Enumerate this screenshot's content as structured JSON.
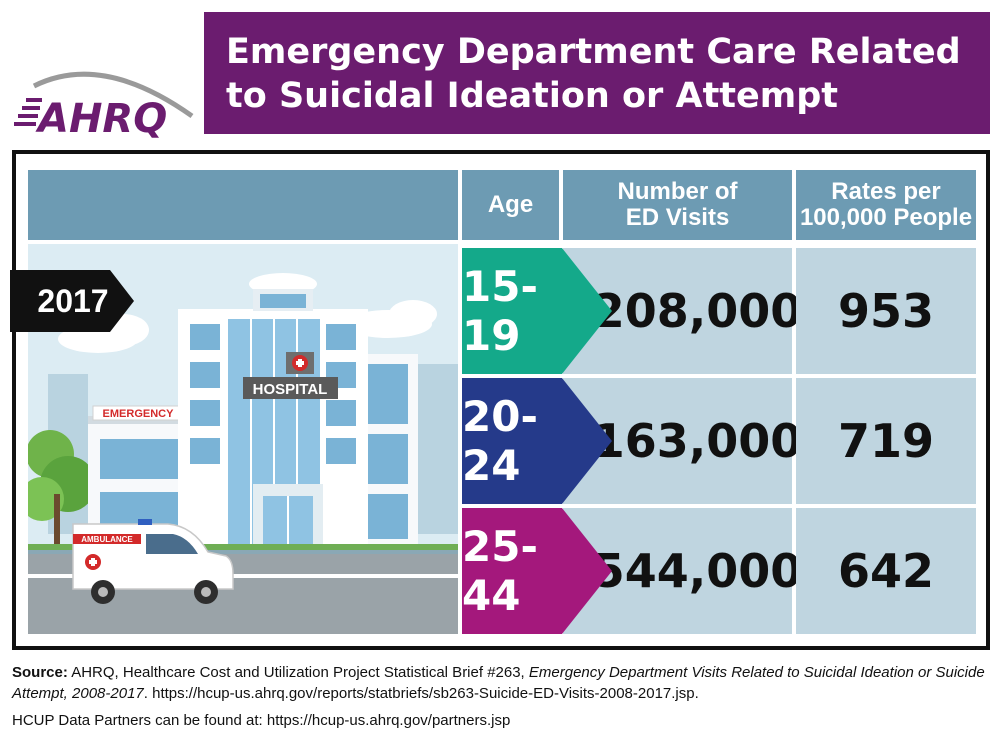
{
  "logo": {
    "text": "AHRQ",
    "color": "#6b1c6f"
  },
  "title": {
    "line1": "Emergency Department Care Related",
    "line2": "to Suicidal Ideation or Attempt",
    "bg": "#6b1c6f"
  },
  "year_tag": "2017",
  "table": {
    "headers": {
      "age": "Age",
      "visits": "Number of\nED Visits",
      "rates": "Rates per\n100,000 People"
    },
    "rows": [
      {
        "age": "15-19",
        "visits": "208,000",
        "rate": "953",
        "color": "#14a98a"
      },
      {
        "age": "20-24",
        "visits": "163,000",
        "rate": "719",
        "color": "#253a8a"
      },
      {
        "age": "25-44",
        "visits": "544,000",
        "rate": "642",
        "color": "#a4187c"
      }
    ]
  },
  "illustration": {
    "hospital_sign": "HOSPITAL",
    "emergency_sign": "EMERGENCY",
    "ambulance_label": "AMBULANCE"
  },
  "footer": {
    "source_label": "Source:",
    "source_text": " AHRQ, Healthcare Cost and Utilization Project Statistical Brief #263, ",
    "source_title": "Emergency Department Visits Related to Suicidal Ideation or Suicide Attempt, 2008-2017",
    "source_url": ". https://hcup-us.ahrq.gov/reports/statbriefs/sb263-Suicide-ED-Visits-2008-2017.jsp.",
    "partners": "HCUP Data Partners can be found at: https://hcup-us.ahrq.gov/partners.jsp"
  }
}
